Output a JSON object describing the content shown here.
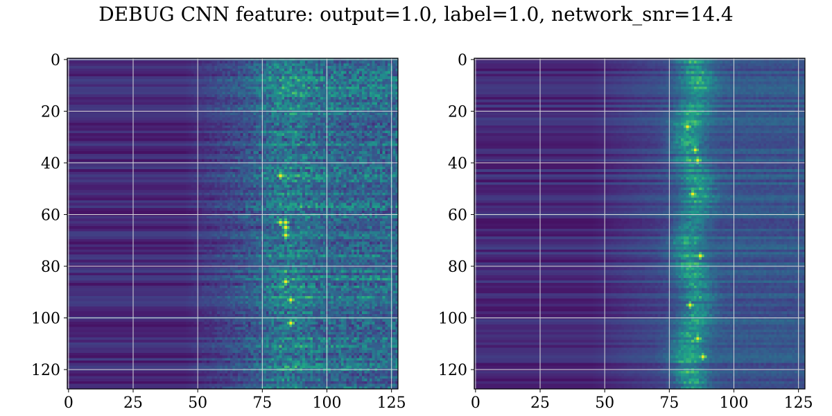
{
  "figure": {
    "title": "DEBUG CNN feature: output=1.0, label=1.0, network_snr=14.4"
  },
  "chart_data": [
    {
      "type": "heatmap",
      "colormap": "viridis",
      "rows": 128,
      "cols": 128,
      "xlim": [
        -0.5,
        127.5
      ],
      "ylim": [
        127.5,
        -0.5
      ],
      "y_inverted": true,
      "xticks": [
        0,
        25,
        50,
        75,
        100,
        125
      ],
      "yticks": [
        0,
        20,
        40,
        60,
        80,
        100,
        120
      ],
      "grid": true,
      "description": "horizontal streaks; low values for columns 0-50, increasing noise beyond 50, strongest activity (yellow) around columns 78-90",
      "hotspots": [
        {
          "x": 82,
          "y": 63
        },
        {
          "x": 84,
          "y": 63
        },
        {
          "x": 84,
          "y": 65
        },
        {
          "x": 84,
          "y": 68
        },
        {
          "x": 84,
          "y": 86
        },
        {
          "x": 86,
          "y": 93
        },
        {
          "x": 82,
          "y": 45
        },
        {
          "x": 86,
          "y": 102
        }
      ]
    },
    {
      "type": "heatmap",
      "colormap": "viridis",
      "rows": 128,
      "cols": 128,
      "xlim": [
        -0.5,
        127.5
      ],
      "ylim": [
        127.5,
        -0.5
      ],
      "y_inverted": true,
      "xticks": [
        0,
        25,
        50,
        75,
        100,
        125
      ],
      "yticks": [
        0,
        20,
        40,
        60,
        80,
        100,
        120
      ],
      "grid": true,
      "description": "smoother horizontal streaks; bright vertical band around columns 80-90",
      "hotspots": [
        {
          "x": 82,
          "y": 26
        },
        {
          "x": 85,
          "y": 35
        },
        {
          "x": 86,
          "y": 39
        },
        {
          "x": 84,
          "y": 52
        },
        {
          "x": 87,
          "y": 76
        },
        {
          "x": 88,
          "y": 115
        },
        {
          "x": 83,
          "y": 95
        },
        {
          "x": 86,
          "y": 108
        }
      ]
    }
  ]
}
